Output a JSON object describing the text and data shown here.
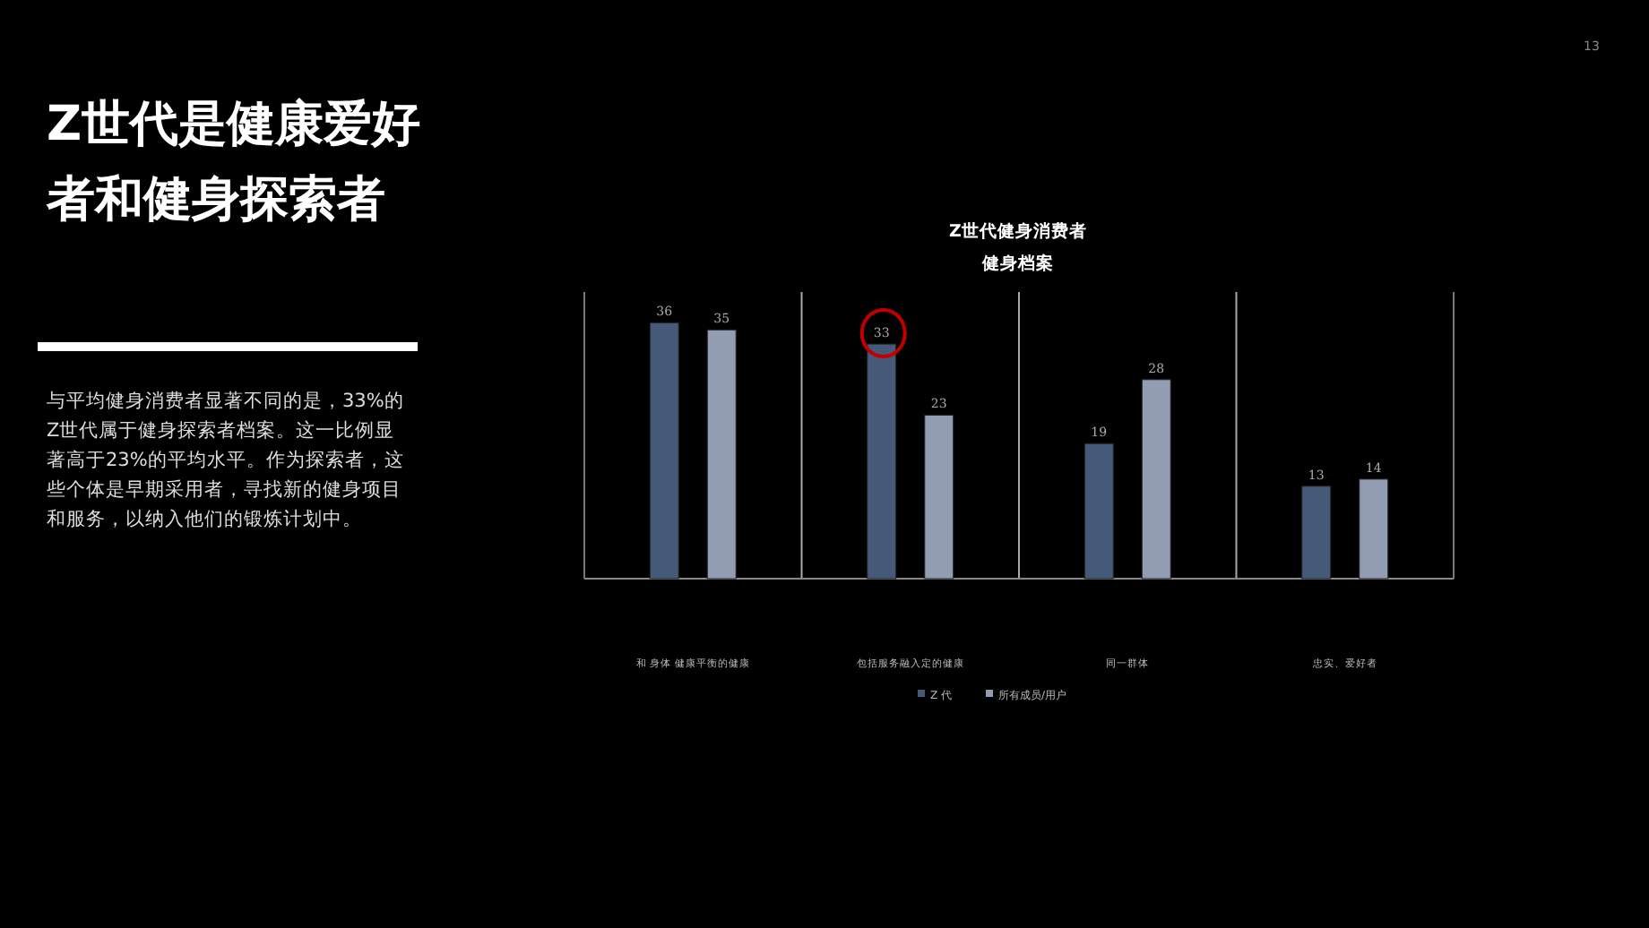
{
  "chart_data": {
    "type": "bar",
    "title": "Z世代健身消费者健身档案",
    "categories": [
      "和 身体 健康平衡的健康",
      "包括服务融入定的健康",
      "同一群体",
      "忠实、爱好者"
    ],
    "series": [
      {
        "name": "Z 代",
        "color": "#445a78",
        "values": [
          36,
          33,
          19,
          13
        ]
      },
      {
        "name": "所有成员/用户",
        "color": "#929db3",
        "values": [
          35,
          23,
          28,
          14
        ]
      }
    ],
    "data_labels": true,
    "legend": "bottom",
    "annotations": [
      "Z世代是健康爱好者和健身探索者",
      "与平均健身消费者显著不同的是，33%的Z世代属于健身探索者档案。这一比例显著高于23%的平均水平。作为探索者，这些个体是早期采用者，寻找新的健身项目和服务，以纳入他们的锻炼计划中。",
      "13"
    ]
  }
}
